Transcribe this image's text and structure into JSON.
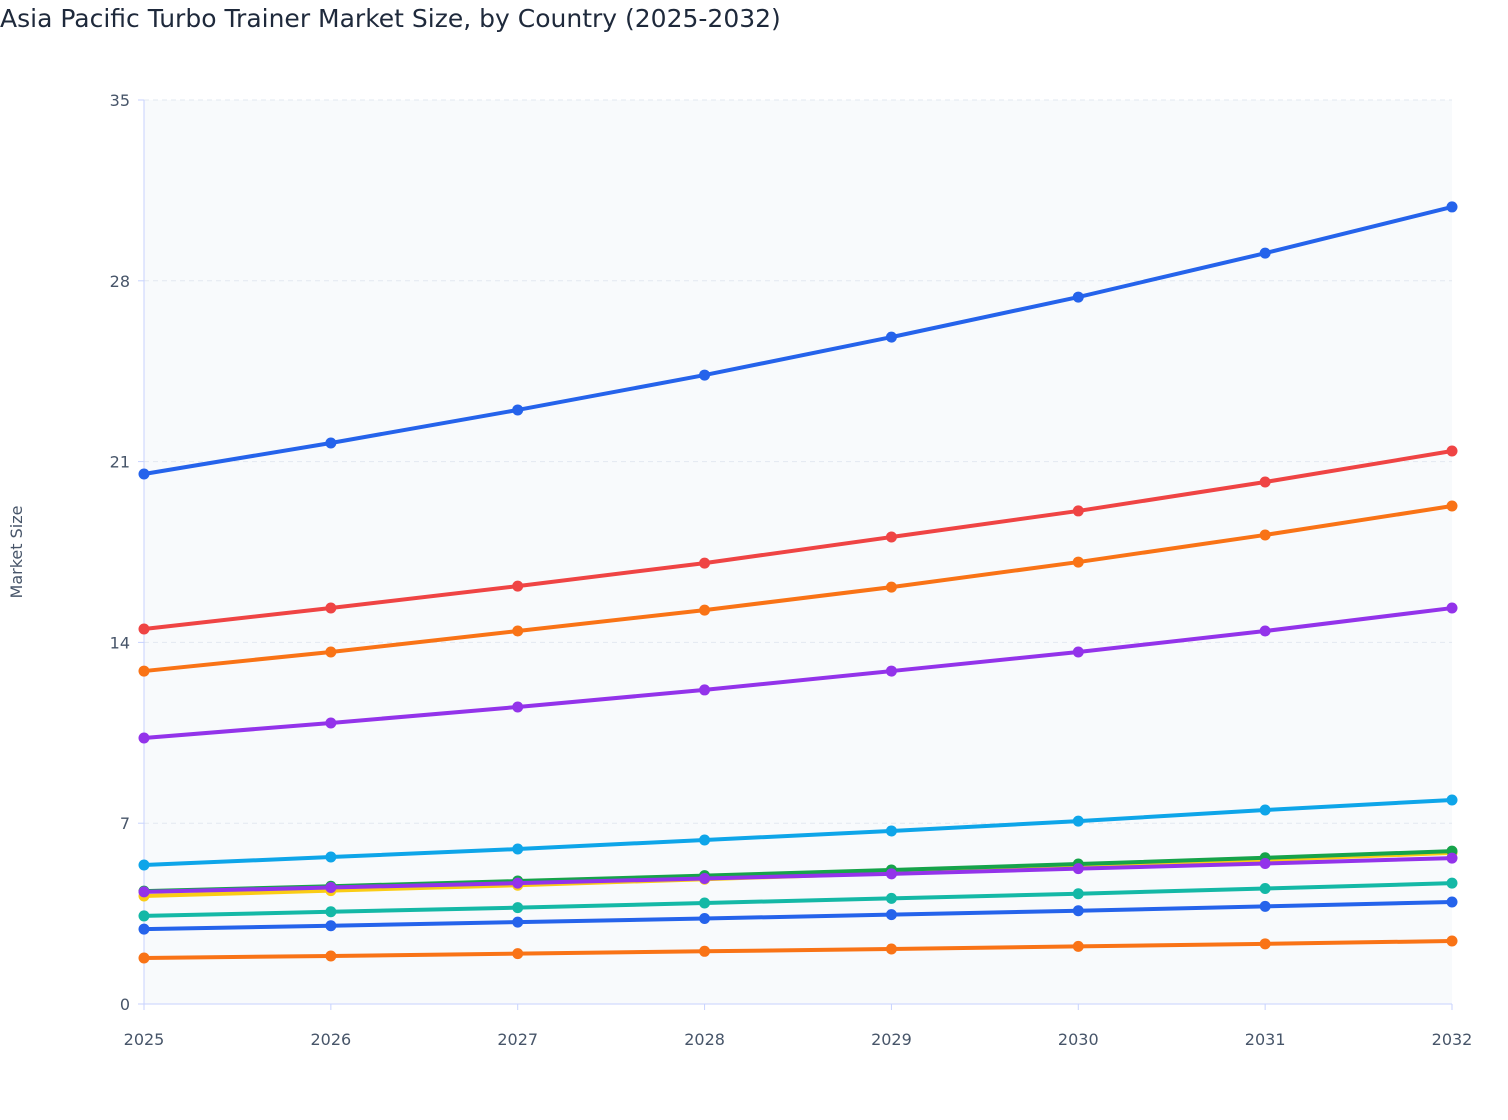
{
  "chart_data": {
    "type": "line",
    "title": "Asia Pacific Turbo Trainer Market Size, by Country (2025-2032)",
    "xlabel": "",
    "ylabel": "Market Size",
    "x": [
      "2025",
      "2026",
      "2027",
      "2028",
      "2029",
      "2030",
      "2031",
      "2032"
    ],
    "ylim": [
      0,
      35
    ],
    "yticks": [
      0,
      7,
      14,
      21,
      28,
      35
    ],
    "grid": true,
    "legend": "none",
    "series": [
      {
        "color": "#2563eb",
        "values": [
          20.52,
          21.72,
          23.0,
          24.35,
          25.82,
          27.37,
          29.07,
          30.86
        ]
      },
      {
        "color": "#ef4444",
        "values": [
          14.52,
          15.33,
          16.18,
          17.07,
          18.08,
          19.09,
          20.21,
          21.41
        ]
      },
      {
        "color": "#f97316",
        "values": [
          12.89,
          13.63,
          14.44,
          15.25,
          16.14,
          17.11,
          18.16,
          19.28
        ]
      },
      {
        "color": "#9333ea",
        "values": [
          10.3,
          10.88,
          11.5,
          12.16,
          12.89,
          13.63,
          14.44,
          15.33
        ]
      },
      {
        "color": "#0ea5e9",
        "values": [
          5.38,
          5.69,
          6.0,
          6.35,
          6.7,
          7.08,
          7.51,
          7.9
        ]
      },
      {
        "color": "#facc15",
        "values": [
          4.18,
          4.39,
          4.6,
          4.83,
          5.07,
          5.32,
          5.58,
          5.85
        ]
      },
      {
        "color": "#16a34a",
        "values": [
          4.37,
          4.56,
          4.76,
          4.97,
          5.19,
          5.42,
          5.66,
          5.92
        ]
      },
      {
        "color": "#9333ea",
        "values": [
          4.34,
          4.51,
          4.68,
          4.86,
          5.04,
          5.24,
          5.44,
          5.65
        ]
      },
      {
        "color": "#14b8a6",
        "values": [
          3.41,
          3.57,
          3.73,
          3.91,
          4.09,
          4.27,
          4.47,
          4.68
        ]
      },
      {
        "color": "#2563eb",
        "values": [
          2.9,
          3.03,
          3.17,
          3.31,
          3.46,
          3.61,
          3.78,
          3.95
        ]
      },
      {
        "color": "#f97316",
        "values": [
          1.78,
          1.86,
          1.95,
          2.04,
          2.13,
          2.23,
          2.33,
          2.44
        ]
      }
    ]
  }
}
